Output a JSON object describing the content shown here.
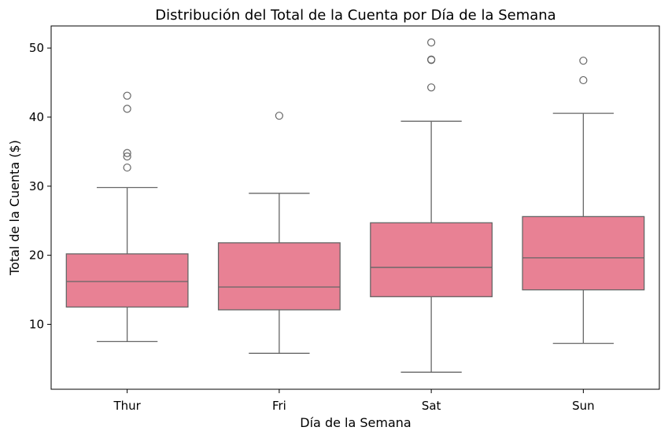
{
  "chart_data": {
    "type": "box",
    "title": "Distribución del Total de la Cuenta por Día de la Semana",
    "xlabel": "Día de la Semana",
    "ylabel": "Total de la Cuenta ($)",
    "ylim": [
      0.6,
      53.2
    ],
    "yticks": [
      "10",
      "20",
      "30",
      "40",
      "50"
    ],
    "grid": false,
    "categories": [
      "Thur",
      "Fri",
      "Sat",
      "Sun"
    ],
    "boxes": [
      {
        "category": "Thur",
        "whisker_low": 7.5,
        "q1": 12.5,
        "median": 16.2,
        "q3": 20.2,
        "whisker_high": 29.8,
        "outliers": [
          32.7,
          34.3,
          34.8,
          41.2,
          43.1
        ]
      },
      {
        "category": "Fri",
        "whisker_low": 5.8,
        "q1": 12.1,
        "median": 15.4,
        "q3": 21.8,
        "whisker_high": 28.97,
        "outliers": [
          40.2
        ]
      },
      {
        "category": "Sat",
        "whisker_low": 3.07,
        "q1": 14.0,
        "median": 18.24,
        "q3": 24.7,
        "whisker_high": 39.4,
        "outliers": [
          44.3,
          48.27,
          48.33,
          50.81
        ]
      },
      {
        "category": "Sun",
        "whisker_low": 7.25,
        "q1": 14.99,
        "median": 19.63,
        "q3": 25.6,
        "whisker_high": 40.55,
        "outliers": [
          45.35,
          48.17
        ]
      }
    ],
    "colors": {
      "box_fill": "#e88194",
      "line": "#666666",
      "axis": "#000000"
    }
  }
}
